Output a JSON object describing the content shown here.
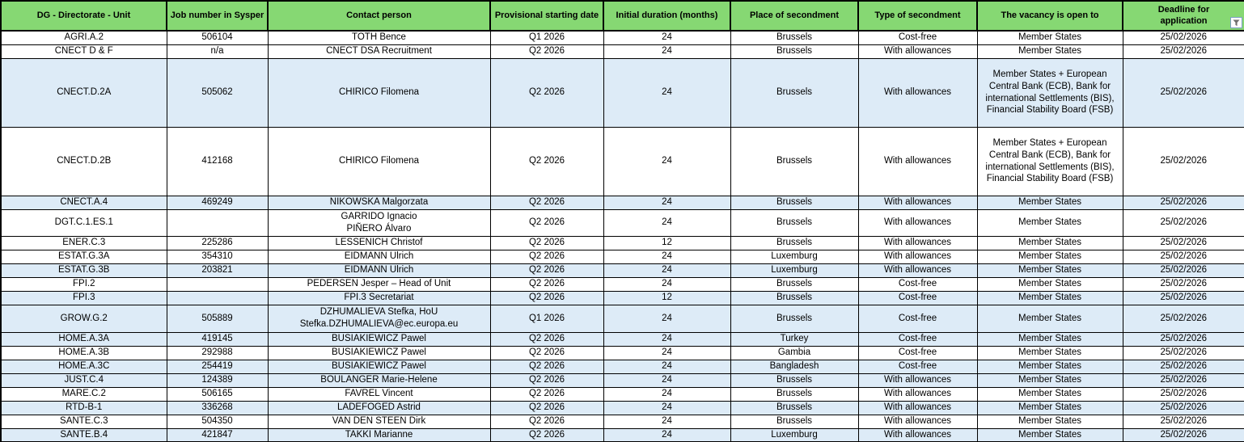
{
  "colors": {
    "header_bg": "#86D873",
    "alt_row_bg": "#DDEBF7",
    "border": "#000000",
    "filter_icon_gray": "#6e6e6e"
  },
  "table": {
    "columns": [
      {
        "id": "dg",
        "label": "DG - Directorate - Unit"
      },
      {
        "id": "job_number",
        "label": "Job number in Sysper"
      },
      {
        "id": "contact",
        "label": "Contact person"
      },
      {
        "id": "start",
        "label": "Provisional starting date"
      },
      {
        "id": "duration",
        "label": "Initial duration (months)"
      },
      {
        "id": "place",
        "label": "Place of secondment"
      },
      {
        "id": "type",
        "label": "Type of secondment"
      },
      {
        "id": "open_to",
        "label": "The vacancy is open to"
      },
      {
        "id": "deadline",
        "label": "Deadline for application",
        "filter_icon": "funnel-icon",
        "narrow_label": true
      }
    ],
    "rows": [
      {
        "dg": "AGRI.A.2",
        "job_number": "506104",
        "contact": "TOTH Bence",
        "start": "Q1 2026",
        "duration": "24",
        "place": "Brussels",
        "type": "Cost-free",
        "open_to": "Member States",
        "deadline": "25/02/2026",
        "shaded": false
      },
      {
        "dg": "CNECT D & F",
        "job_number": "n/a",
        "contact": "CNECT DSA Recruitment",
        "start": "Q2 2026",
        "duration": "24",
        "place": "Brussels",
        "type": "With allowances",
        "open_to": "Member States",
        "deadline": "25/02/2026",
        "shaded": false
      },
      {
        "dg": "CNECT.D.2A",
        "job_number": "505062",
        "contact": "CHIRICO Filomena",
        "start": "Q2 2026",
        "duration": "24",
        "place": "Brussels",
        "type": "With allowances",
        "open_to": "Member States + European Central Bank (ECB), Bank for international Settlements (BIS), Financial Stability Board (FSB)",
        "deadline": "25/02/2026",
        "shaded": true
      },
      {
        "dg": "CNECT.D.2B",
        "job_number": "412168",
        "contact": "CHIRICO Filomena",
        "start": "Q2 2026",
        "duration": "24",
        "place": "Brussels",
        "type": "With allowances",
        "open_to": "Member States + European Central Bank (ECB), Bank for international Settlements (BIS), Financial Stability Board (FSB)",
        "deadline": "25/02/2026",
        "shaded": false
      },
      {
        "dg": "CNECT.A.4",
        "job_number": "469249",
        "contact": "NIKOWSKA Malgorzata",
        "start": "Q2 2026",
        "duration": "24",
        "place": "Brussels",
        "type": "With allowances",
        "open_to": "Member States",
        "deadline": "25/02/2026",
        "shaded": true
      },
      {
        "dg": "DGT.C.1.ES.1",
        "job_number": "",
        "contact": "GARRIDO Ignacio\nPIÑERO Álvaro",
        "start": "Q2 2026",
        "duration": "24",
        "place": "Brussels",
        "type": "With allowances",
        "open_to": "Member States",
        "deadline": "25/02/2026",
        "shaded": false
      },
      {
        "dg": "ENER.C.3",
        "job_number": "225286",
        "contact": "LESSENICH Christof",
        "start": "Q2 2026",
        "duration": "12",
        "place": "Brussels",
        "type": "With allowances",
        "open_to": "Member States",
        "deadline": "25/02/2026",
        "shaded": false
      },
      {
        "dg": "ESTAT.G.3A",
        "job_number": "354310",
        "contact": "EIDMANN Ulrich",
        "start": "Q2 2026",
        "duration": "24",
        "place": "Luxemburg",
        "type": "With allowances",
        "open_to": "Member States",
        "deadline": "25/02/2026",
        "shaded": false
      },
      {
        "dg": "ESTAT.G.3B",
        "job_number": "203821",
        "contact": "EIDMANN Ulrich",
        "start": "Q2 2026",
        "duration": "24",
        "place": "Luxemburg",
        "type": "With allowances",
        "open_to": "Member States",
        "deadline": "25/02/2026",
        "shaded": true
      },
      {
        "dg": "FPI.2",
        "job_number": "",
        "contact": "PEDERSEN Jesper – Head of Unit",
        "start": "Q2 2026",
        "duration": "24",
        "place": "Brussels",
        "type": "Cost-free",
        "open_to": "Member States",
        "deadline": "25/02/2026",
        "shaded": false
      },
      {
        "dg": "FPI.3",
        "job_number": "",
        "contact": "FPI.3 Secretariat",
        "start": "Q2 2026",
        "duration": "12",
        "place": "Brussels",
        "type": "Cost-free",
        "open_to": "Member States",
        "deadline": "25/02/2026",
        "shaded": true
      },
      {
        "dg": "GROW.G.2",
        "job_number": "505889",
        "contact": "DZHUMALIEVA Stefka, HoU\nStefka.DZHUMALIEVA@ec.europa.eu",
        "start": "Q1 2026",
        "duration": "24",
        "place": "Brussels",
        "type": "Cost-free",
        "open_to": "Member States",
        "deadline": "25/02/2026",
        "shaded": true
      },
      {
        "dg": "HOME.A.3A",
        "job_number": "419145",
        "contact": "BUSIAKIEWICZ Pawel",
        "start": "Q2 2026",
        "duration": "24",
        "place": "Turkey",
        "type": "Cost-free",
        "open_to": "Member States",
        "deadline": "25/02/2026",
        "shaded": true
      },
      {
        "dg": "HOME.A.3B",
        "job_number": "292988",
        "contact": "BUSIAKIEWICZ Pawel",
        "start": "Q2 2026",
        "duration": "24",
        "place": "Gambia",
        "type": "Cost-free",
        "open_to": "Member States",
        "deadline": "25/02/2026",
        "shaded": false
      },
      {
        "dg": "HOME.A.3C",
        "job_number": "254419",
        "contact": "BUSIAKIEWICZ Pawel",
        "start": "Q2 2026",
        "duration": "24",
        "place": "Bangladesh",
        "type": "Cost-free",
        "open_to": "Member States",
        "deadline": "25/02/2026",
        "shaded": true
      },
      {
        "dg": "JUST.C.4",
        "job_number": "124389",
        "contact": "BOULANGER Marie-Helene",
        "start": "Q2 2026",
        "duration": "24",
        "place": "Brussels",
        "type": "With allowances",
        "open_to": "Member States",
        "deadline": "25/02/2026",
        "shaded": true
      },
      {
        "dg": "MARE.C.2",
        "job_number": "506165",
        "contact": "FAVREL Vincent",
        "start": "Q2 2026",
        "duration": "24",
        "place": "Brussels",
        "type": "With allowances",
        "open_to": "Member States",
        "deadline": "25/02/2026",
        "shaded": false
      },
      {
        "dg": "RTD-B-1",
        "job_number": "336268",
        "contact": "LADEFOGED Astrid",
        "start": "Q2 2026",
        "duration": "24",
        "place": "Brussels",
        "type": "With allowances",
        "open_to": "Member States",
        "deadline": "25/02/2026",
        "shaded": true
      },
      {
        "dg": "SANTE.C.3",
        "job_number": "504350",
        "contact": "VAN DEN STEEN Dirk",
        "start": "Q2 2026",
        "duration": "24",
        "place": "Brussels",
        "type": "With allowances",
        "open_to": "Member States",
        "deadline": "25/02/2026",
        "shaded": false
      },
      {
        "dg": "SANTE.B.4",
        "job_number": "421847",
        "contact": "TAKKI Marianne",
        "start": "Q2 2026",
        "duration": "24",
        "place": "Luxemburg",
        "type": "With allowances",
        "open_to": "Member States",
        "deadline": "25/02/2026",
        "shaded": true
      }
    ]
  }
}
